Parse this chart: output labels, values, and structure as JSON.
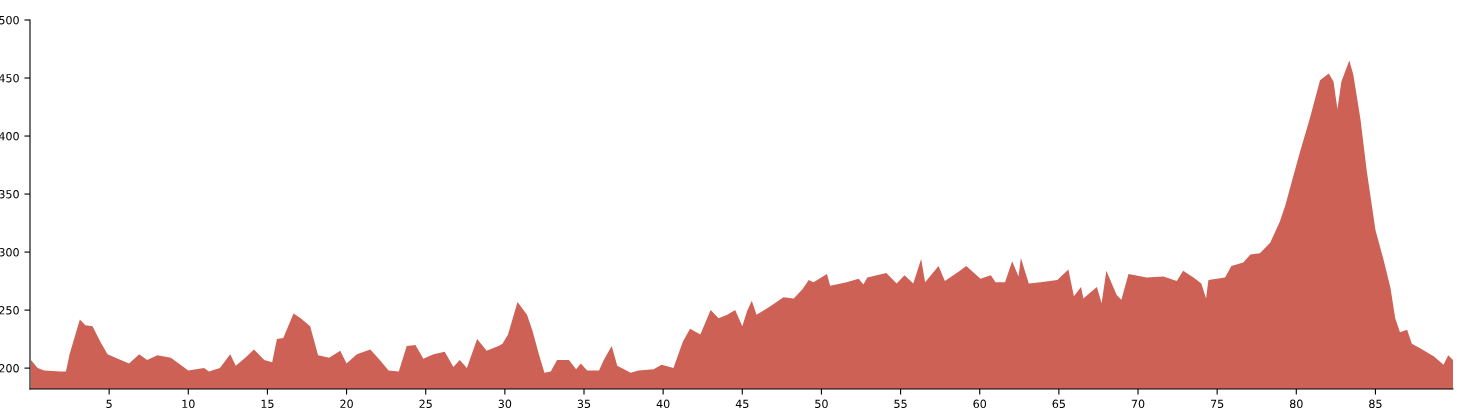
{
  "chart_data": {
    "type": "area",
    "xlim": [
      0,
      89.9
    ],
    "ylim": [
      182,
      500
    ],
    "xticks": [
      5,
      10,
      15,
      20,
      25,
      30,
      35,
      40,
      45,
      50,
      55,
      60,
      65,
      70,
      75,
      80,
      85
    ],
    "yticks": [
      200,
      250,
      300,
      350,
      400,
      450,
      500
    ],
    "grid": false,
    "legend": false,
    "series": [
      {
        "color": "#cd6155",
        "x": [
          0.06,
          0.48,
          0.9,
          1.95,
          2.27,
          2.5,
          3.15,
          3.5,
          3.95,
          4.47,
          4.9,
          5.4,
          6.26,
          6.9,
          7.4,
          8.05,
          8.9,
          10.0,
          11.0,
          11.3,
          12.0,
          12.65,
          13.0,
          13.6,
          14.15,
          14.8,
          15.3,
          15.6,
          16.0,
          16.65,
          17.1,
          17.7,
          18.2,
          18.9,
          19.6,
          20.0,
          20.65,
          21.5,
          22.1,
          22.65,
          23.3,
          23.8,
          24.35,
          24.85,
          25.5,
          26.2,
          26.75,
          27.15,
          27.6,
          28.25,
          28.85,
          29.6,
          29.85,
          30.2,
          30.8,
          31.4,
          31.75,
          32.15,
          32.5,
          32.9,
          33.3,
          34.05,
          34.5,
          34.8,
          35.2,
          35.95,
          36.25,
          36.75,
          37.1,
          37.95,
          38.45,
          39.4,
          39.9,
          40.65,
          41.25,
          41.7,
          42.35,
          43.0,
          43.5,
          44.05,
          44.55,
          45.0,
          45.3,
          45.6,
          45.9,
          46.75,
          47.6,
          48.25,
          48.8,
          49.2,
          49.5,
          50.35,
          50.55,
          51.6,
          52.35,
          52.65,
          52.9,
          54.1,
          54.75,
          55.25,
          55.8,
          56.3,
          56.55,
          57.4,
          57.8,
          58.75,
          59.15,
          60.05,
          60.7,
          61.0,
          61.6,
          62.05,
          62.45,
          62.6,
          63.1,
          63.85,
          64.9,
          65.6,
          65.95,
          66.4,
          66.55,
          67.4,
          67.7,
          68.0,
          68.65,
          68.95,
          69.4,
          70.55,
          71.6,
          72.45,
          72.85,
          73.5,
          74.0,
          74.3,
          74.45,
          75.5,
          75.9,
          76.65,
          77.1,
          77.7,
          78.35,
          78.95,
          79.3,
          79.8,
          80.25,
          80.85,
          81.5,
          82.05,
          82.35,
          82.6,
          82.85,
          83.35,
          83.6,
          84.05,
          84.45,
          85.0,
          85.5,
          85.95,
          86.25,
          86.55,
          87.0,
          87.3,
          87.85,
          88.7,
          89.3,
          89.6,
          89.9
        ],
        "values": [
          207,
          200,
          198,
          197,
          197,
          212,
          242,
          237,
          236,
          222,
          212,
          209,
          204,
          212,
          207,
          211,
          209,
          198,
          200,
          197,
          200,
          212,
          202,
          209,
          216,
          207,
          205,
          225,
          226,
          247,
          243,
          236,
          211,
          209,
          215,
          204,
          212,
          216,
          207,
          198,
          197,
          219,
          220,
          208,
          212,
          214,
          201,
          207,
          200,
          225,
          215,
          219,
          221,
          229,
          257,
          246,
          232,
          212,
          196,
          197,
          207,
          207,
          199,
          204,
          198,
          198,
          207,
          219,
          202,
          196,
          198,
          199,
          203,
          200,
          223,
          234,
          229,
          250,
          243,
          246,
          250,
          236,
          249,
          258,
          246,
          253,
          261,
          260,
          268,
          276,
          274,
          281,
          271,
          274,
          277,
          272,
          278,
          282,
          273,
          280,
          273,
          294,
          274,
          288,
          275,
          284,
          288,
          277,
          280,
          274,
          274,
          292,
          279,
          295,
          273,
          274,
          276,
          285,
          262,
          270,
          260,
          270,
          256,
          284,
          263,
          259,
          281,
          278,
          279,
          275,
          284,
          278,
          273,
          260,
          276,
          278,
          288,
          291,
          298,
          299,
          308,
          326,
          340,
          365,
          387,
          415,
          448,
          454,
          447,
          423,
          447,
          465,
          453,
          415,
          370,
          319,
          294,
          269,
          243,
          231,
          233,
          221,
          217,
          210,
          203,
          211,
          207
        ]
      }
    ]
  }
}
